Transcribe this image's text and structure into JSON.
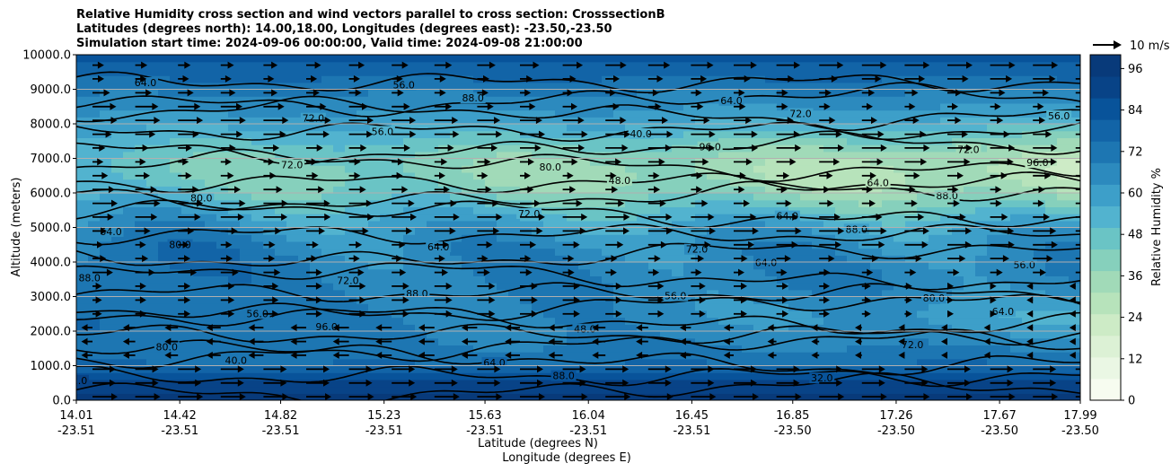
{
  "chart_data": {
    "type": "heatmap",
    "title_lines": [
      "Relative Humidity cross section and wind vectors parallel to cross section: CrosssectionB",
      "Latitudes (degrees north): 14.00,18.00, Longitudes (degrees east): -23.50,-23.50",
      "Simulation start time: 2024-09-06 00:00:00, Valid time: 2024-09-08 21:00:00"
    ],
    "ylabel": "Altitude (meters)",
    "xlabel_lat": "Latitude (degrees N)",
    "xlabel_lon": "Longitude (degrees E)",
    "ylim": [
      0,
      10000
    ],
    "y_ticks": [
      "0.0",
      "1000.0",
      "2000.0",
      "3000.0",
      "4000.0",
      "5000.0",
      "6000.0",
      "7000.0",
      "8000.0",
      "9000.0",
      "10000.0"
    ],
    "x_ticks": [
      {
        "lat": "14.01",
        "lon": "-23.51"
      },
      {
        "lat": "14.42",
        "lon": "-23.51"
      },
      {
        "lat": "14.82",
        "lon": "-23.51"
      },
      {
        "lat": "15.23",
        "lon": "-23.51"
      },
      {
        "lat": "15.63",
        "lon": "-23.51"
      },
      {
        "lat": "16.04",
        "lon": "-23.51"
      },
      {
        "lat": "16.45",
        "lon": "-23.51"
      },
      {
        "lat": "16.85",
        "lon": "-23.50"
      },
      {
        "lat": "17.26",
        "lon": "-23.50"
      },
      {
        "lat": "17.67",
        "lon": "-23.50"
      },
      {
        "lat": "17.99",
        "lon": "-23.50"
      }
    ],
    "colorbar": {
      "label": "Relative Humidity %",
      "range": [
        0,
        100
      ],
      "tick_labels": [
        "0",
        "12",
        "24",
        "36",
        "48",
        "60",
        "72",
        "84",
        "96"
      ],
      "colors": [
        "#f7fcf0",
        "#eaf7e4",
        "#dcf1d5",
        "#cdebc6",
        "#b7e3bb",
        "#a1dab8",
        "#86d0bc",
        "#6ac4c5",
        "#52b3cf",
        "#3d9fc9",
        "#2c8abe",
        "#1d76b2",
        "#1264a7",
        "#08539a",
        "#084387",
        "#083a7a"
      ]
    },
    "wind_key_label": "10 m/s",
    "grid": "horizontal",
    "contour_labels": [
      "72.0",
      "72.0",
      "72.0",
      "80.0",
      "80.0",
      "80.0",
      "64.0",
      "56.0",
      "56.0",
      "40.0",
      "56.0",
      "64.0",
      "64.0",
      "64.0",
      "64.0",
      "72.0",
      "72.0",
      "48.0",
      "80.0",
      "32.0",
      "64.0",
      "56.0",
      "56.0",
      "72.0",
      "72.0",
      "72.0",
      "64.0",
      "64.0",
      "56.0",
      "64.0",
      "48.0",
      "40.0",
      "88.0",
      "88.0",
      "88.0",
      "96.0",
      "96.0",
      "88.0",
      "88.0",
      "80.0",
      "72.0",
      "88.0",
      "96.0"
    ],
    "rh_field_description": "humid (>80%) near surface and top; dry tongue (30-45%) between 4500 and 8500 m increasing northward"
  }
}
